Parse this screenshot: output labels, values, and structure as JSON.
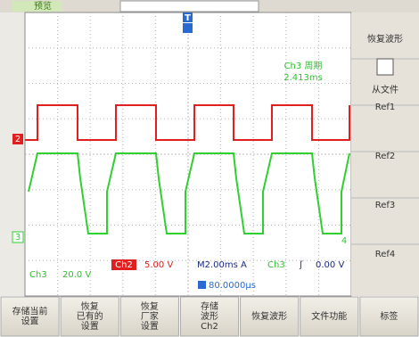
{
  "header": {
    "title": "预览"
  },
  "measurement": {
    "label": "Ch3 周期",
    "value": "2.413ms"
  },
  "markers": {
    "ch2": "2",
    "ch3": "3",
    "ch4": "4",
    "trigger": "T"
  },
  "status": {
    "ch3_scale": {
      "channel": "Ch3",
      "value": "20.0 V"
    },
    "ch2_scale": {
      "channel": "Ch2",
      "value": "5.00 V"
    },
    "timebase": "M2.00ms A",
    "trigger": {
      "channel": "Ch3",
      "edge": "ʃ",
      "level": "0.00 V"
    },
    "position": "80.0000μs"
  },
  "side_menu": [
    "恢复波形",
    "从文件",
    "Ref1",
    "Ref2",
    "Ref3",
    "Ref4"
  ],
  "bottom_menu": [
    [
      "存储当前",
      "设置"
    ],
    [
      "恢复",
      "已有的",
      "设置"
    ],
    [
      "恢复",
      "厂家",
      "设置"
    ],
    [
      "存储",
      "波形",
      "Ch2"
    ],
    [
      "恢复波形"
    ],
    [
      "文件功能"
    ],
    [
      "标签"
    ]
  ]
}
